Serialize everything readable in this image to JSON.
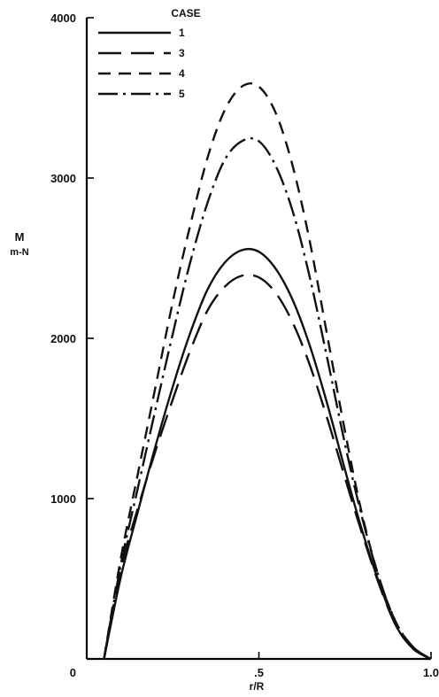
{
  "chart_data": {
    "type": "line",
    "xlabel": "r/R",
    "ylabel": [
      "M",
      "m-N"
    ],
    "xlim": [
      0,
      1.0
    ],
    "ylim": [
      0,
      4000
    ],
    "x_ticks": [
      {
        "value": 0,
        "label": "0"
      },
      {
        "value": 0.5,
        "label": ".5"
      },
      {
        "value": 1.0,
        "label": "1.0"
      }
    ],
    "y_ticks": [
      {
        "value": 1000,
        "label": "1000"
      },
      {
        "value": 2000,
        "label": "2000"
      },
      {
        "value": 3000,
        "label": "3000"
      },
      {
        "value": 4000,
        "label": "4000"
      }
    ],
    "legend": {
      "title": "CASE",
      "placement": "top-left"
    },
    "series": [
      {
        "name": "1",
        "style": "solid",
        "x": [
          0.05,
          0.1,
          0.15,
          0.2,
          0.25,
          0.3,
          0.35,
          0.4,
          0.45,
          0.5,
          0.55,
          0.6,
          0.65,
          0.7,
          0.75,
          0.8,
          0.85,
          0.9,
          0.95,
          1.0
        ],
        "y": [
          0,
          520,
          930,
          1330,
          1700,
          2030,
          2300,
          2470,
          2550,
          2540,
          2430,
          2230,
          1940,
          1580,
          1180,
          800,
          470,
          200,
          60,
          0
        ]
      },
      {
        "name": "3",
        "style": "long-dash",
        "x": [
          0.05,
          0.1,
          0.15,
          0.2,
          0.25,
          0.3,
          0.35,
          0.4,
          0.45,
          0.5,
          0.55,
          0.6,
          0.65,
          0.7,
          0.75,
          0.8,
          0.85,
          0.9,
          0.95,
          1.0
        ],
        "y": [
          0,
          570,
          950,
          1300,
          1620,
          1920,
          2170,
          2320,
          2390,
          2380,
          2280,
          2090,
          1820,
          1490,
          1130,
          780,
          460,
          200,
          60,
          0
        ]
      },
      {
        "name": "4",
        "style": "dash",
        "x": [
          0.05,
          0.1,
          0.15,
          0.2,
          0.25,
          0.3,
          0.35,
          0.4,
          0.45,
          0.5,
          0.55,
          0.6,
          0.65,
          0.7,
          0.75,
          0.8,
          0.85,
          0.9,
          0.95,
          1.0
        ],
        "y": [
          0,
          640,
          1170,
          1700,
          2230,
          2700,
          3120,
          3420,
          3570,
          3570,
          3400,
          3060,
          2580,
          2000,
          1420,
          900,
          500,
          220,
          70,
          0
        ]
      },
      {
        "name": "5",
        "style": "dash-dot",
        "x": [
          0.05,
          0.1,
          0.15,
          0.2,
          0.25,
          0.3,
          0.35,
          0.4,
          0.45,
          0.5,
          0.55,
          0.6,
          0.65,
          0.7,
          0.75,
          0.8,
          0.85,
          0.9,
          0.95,
          1.0
        ],
        "y": [
          0,
          600,
          1080,
          1560,
          2030,
          2470,
          2840,
          3110,
          3230,
          3230,
          3070,
          2780,
          2360,
          1860,
          1340,
          880,
          500,
          220,
          70,
          0
        ]
      }
    ]
  }
}
